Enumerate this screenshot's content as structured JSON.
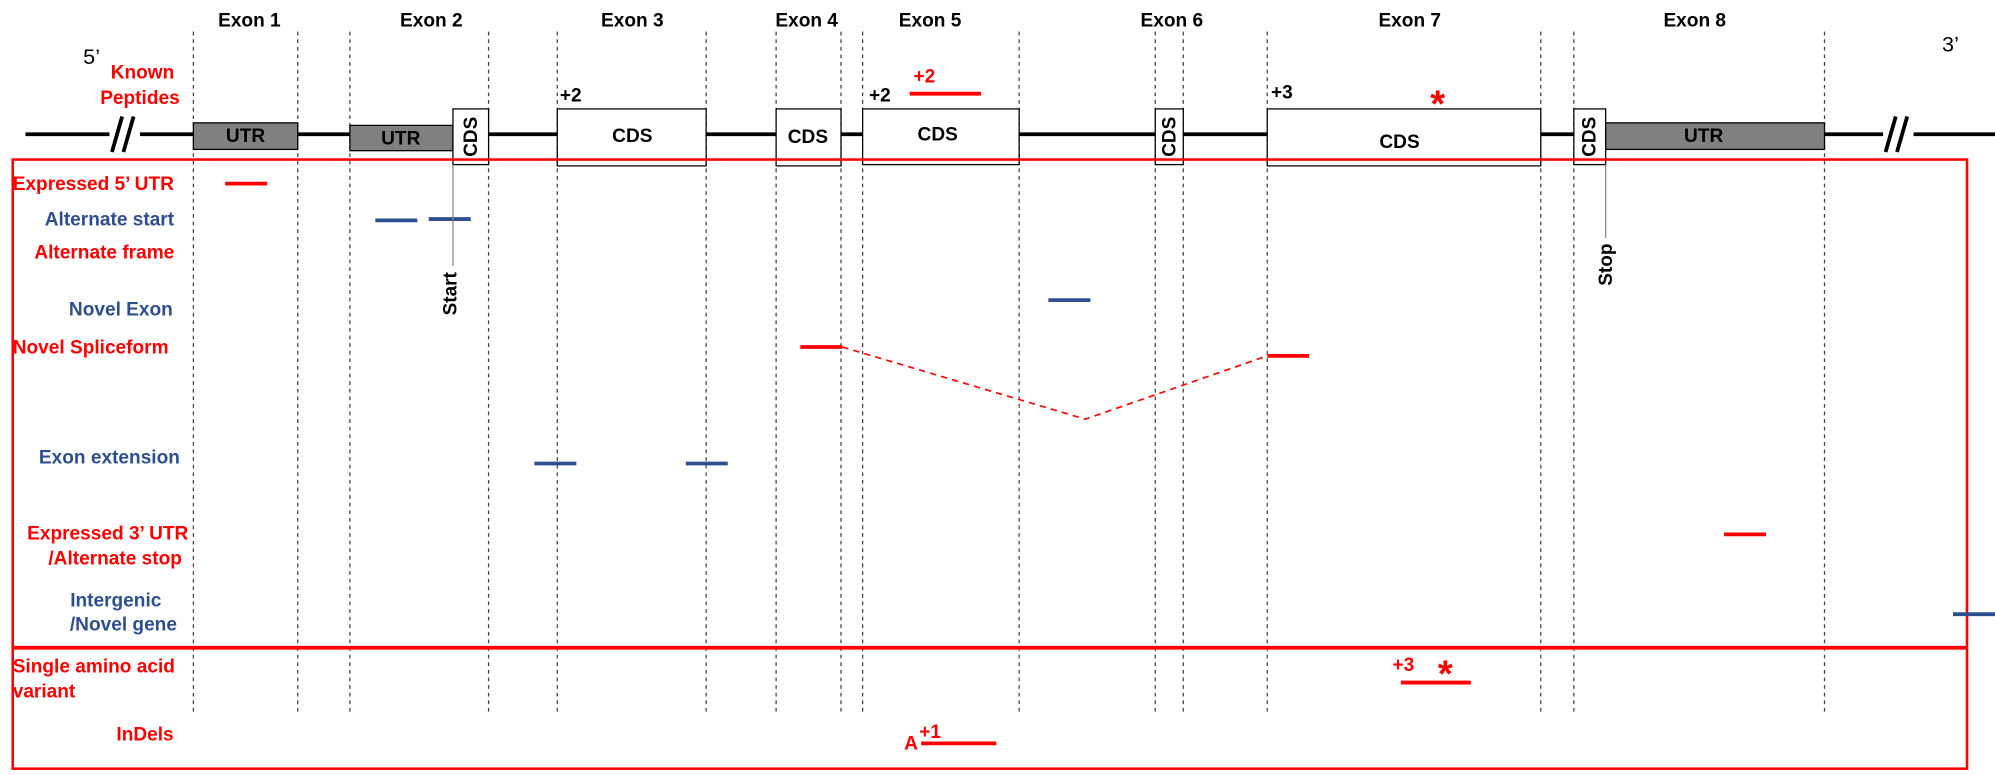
{
  "exon_labels": [
    "Exon 1",
    "Exon 2",
    "Exon 3",
    "Exon 4",
    "Exon 5",
    "Exon 6",
    "Exon 7",
    "Exon 8"
  ],
  "ends": {
    "five_prime": "5’",
    "three_prime": "3’"
  },
  "known_peptides": {
    "lines": [
      "Known",
      "Peptides"
    ],
    "frame": "+2"
  },
  "gene_model": {
    "boxes": [
      "UTR",
      "UTR",
      "CDS",
      "CDS",
      "CDS",
      "CDS",
      "CDS",
      "CDS",
      "CDS",
      "UTR"
    ],
    "frames": [
      "+2",
      "+2",
      "+3"
    ],
    "variant_marker": "*",
    "start": "Start",
    "stop": "Stop"
  },
  "rows": [
    {
      "lines": [
        "Expressed 5’ UTR"
      ]
    },
    {
      "lines": [
        "Alternate start"
      ]
    },
    {
      "lines": [
        "Alternate frame"
      ]
    },
    {
      "lines": [
        "Novel Exon"
      ]
    },
    {
      "lines": [
        "Novel Spliceform"
      ]
    },
    {
      "lines": [
        "Exon extension"
      ]
    },
    {
      "lines": [
        "Expressed 3’ UTR",
        "/Alternate stop"
      ]
    },
    {
      "lines": [
        "Intergenic",
        "/Novel gene"
      ]
    },
    {
      "lines": [
        "Single amino acid",
        "variant"
      ]
    },
    {
      "lines": [
        "InDels"
      ]
    }
  ],
  "annotations": {
    "sav_frame": "+3",
    "sav_marker": "*",
    "indel_base": "A",
    "indel_frame": "+1"
  }
}
